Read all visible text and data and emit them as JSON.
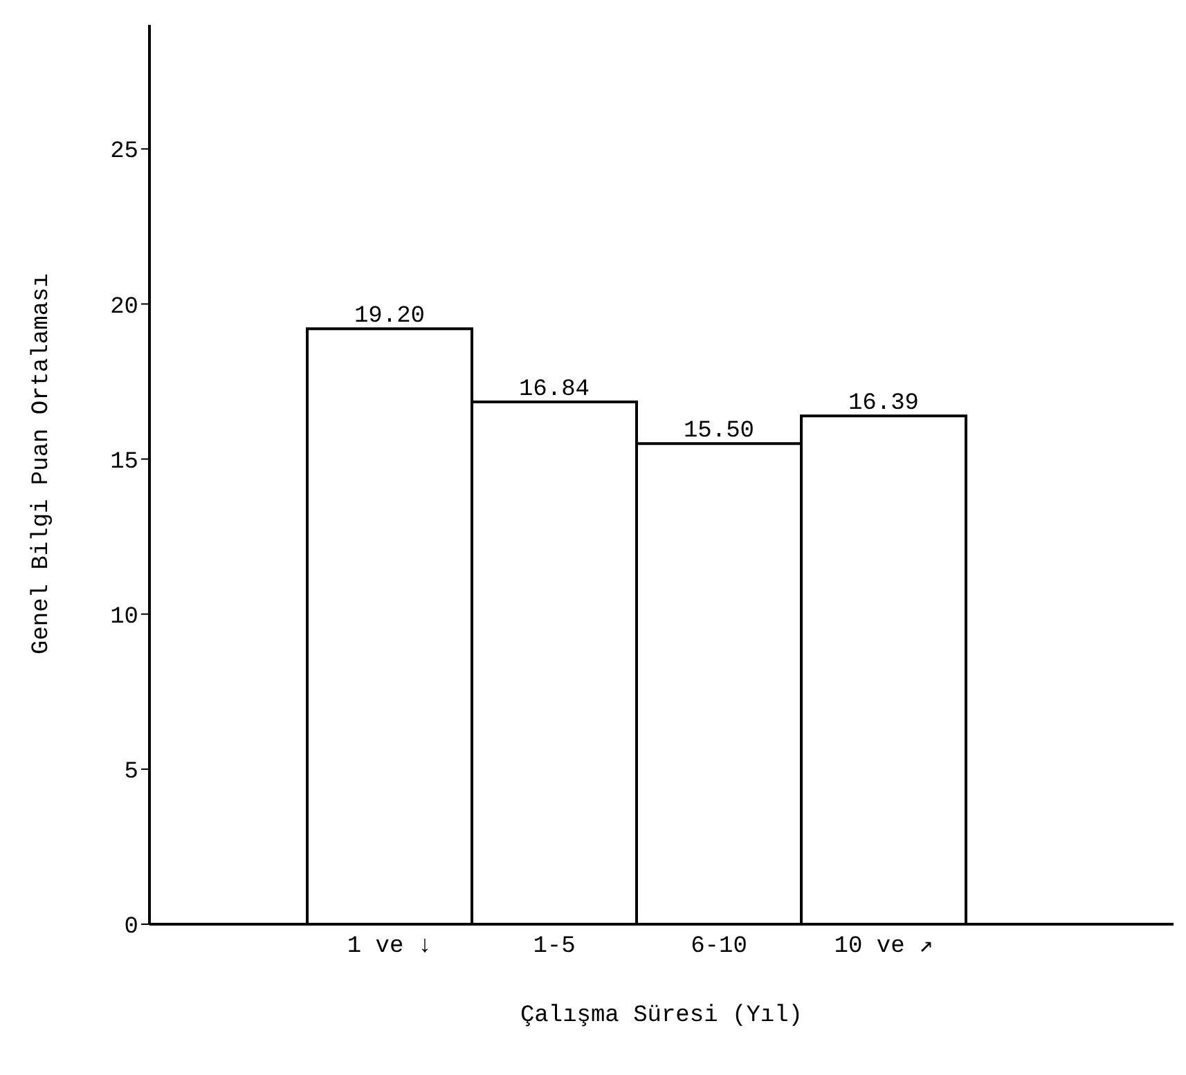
{
  "chart_data": {
    "type": "bar",
    "xlabel": "Çalışma Süresi (Yıl)",
    "ylabel": "Genel Bilgi Puan Ortalaması",
    "categories": [
      "1 ve ↓",
      "1-5",
      "6-10",
      "10 ve ↗"
    ],
    "values": [
      19.2,
      16.84,
      15.5,
      16.39
    ],
    "value_labels": [
      "19.20",
      "16.84",
      "15.50",
      "16.39"
    ],
    "color": "#ffffff",
    "ylim": [
      0,
      29
    ],
    "yticks": [
      0,
      5,
      10,
      15,
      20,
      25
    ],
    "grid": false,
    "legend": false
  }
}
